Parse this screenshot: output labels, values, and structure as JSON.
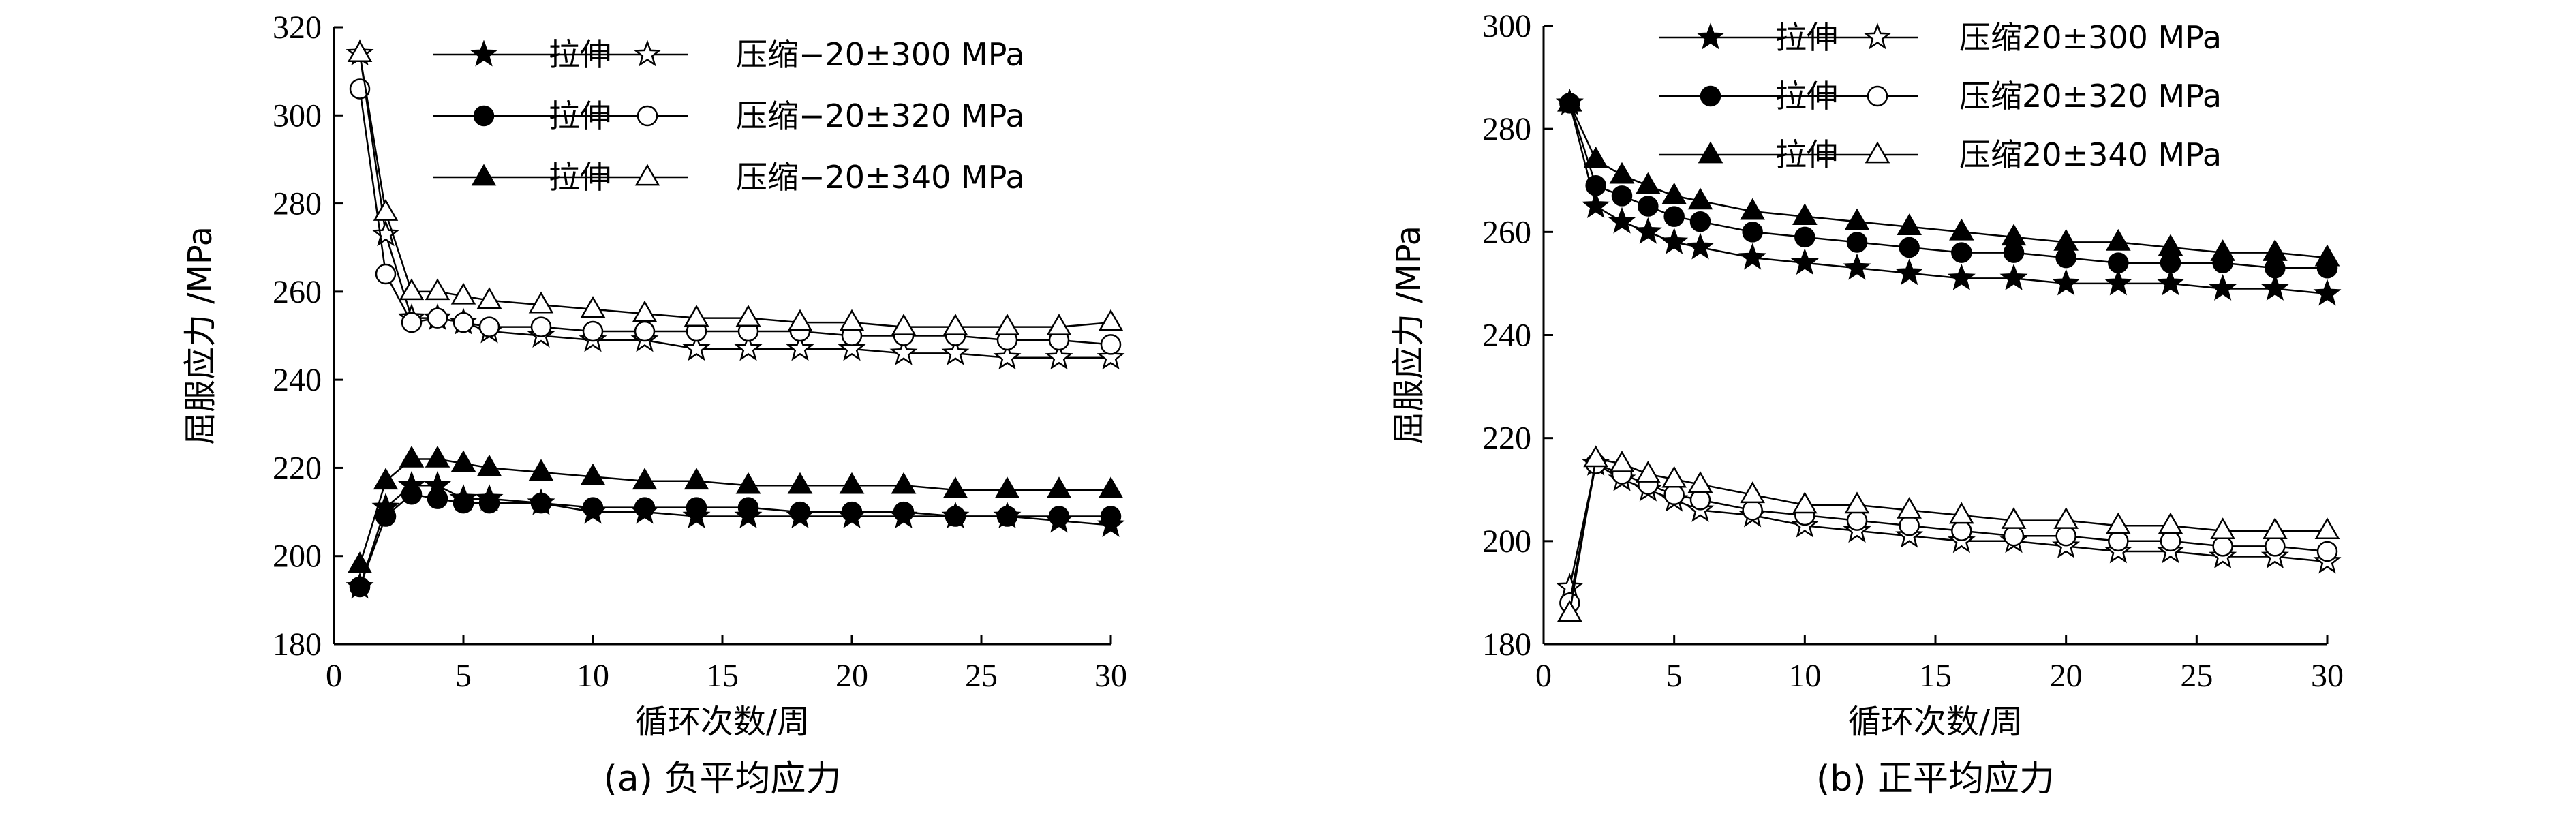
{
  "chart_data": [
    {
      "type": "line",
      "caption": "(a) 负平均应力",
      "xlabel": "循环次数/周",
      "ylabel": "屈服应力 /MPa",
      "xlim": [
        0,
        30
      ],
      "ylim": [
        180,
        320
      ],
      "xticks": [
        0,
        5,
        10,
        15,
        20,
        25,
        30
      ],
      "yticks": [
        180,
        200,
        220,
        240,
        260,
        280,
        300,
        320
      ],
      "legend_location": "top-right",
      "legend_rows": [
        {
          "tension_label": "拉伸",
          "compression_label": "压缩−20±300 MPa",
          "marker": "star"
        },
        {
          "tension_label": "拉伸",
          "compression_label": "压缩−20±320 MPa",
          "marker": "circle"
        },
        {
          "tension_label": "拉伸",
          "compression_label": "压缩−20±340 MPa",
          "marker": "triangle"
        }
      ],
      "x": [
        1,
        2,
        3,
        4,
        5,
        6,
        8,
        10,
        12,
        14,
        16,
        18,
        20,
        22,
        24,
        26,
        28,
        30
      ],
      "series": [
        {
          "name": "拉伸 −20±300 MPa",
          "marker": "star",
          "filled": true,
          "values": [
            193,
            211,
            216,
            216,
            213,
            213,
            212,
            210,
            210,
            209,
            209,
            209,
            209,
            209,
            209,
            209,
            208,
            207
          ]
        },
        {
          "name": "压缩 −20±300 MPa",
          "marker": "star",
          "filled": false,
          "values": [
            314,
            273,
            254,
            254,
            253,
            251,
            250,
            249,
            249,
            247,
            247,
            247,
            247,
            246,
            246,
            245,
            245,
            245
          ]
        },
        {
          "name": "拉伸 −20±320 MPa",
          "marker": "circle",
          "filled": true,
          "values": [
            193,
            209,
            214,
            213,
            212,
            212,
            212,
            211,
            211,
            211,
            211,
            210,
            210,
            210,
            209,
            209,
            209,
            209
          ]
        },
        {
          "name": "压缩 −20±320 MPa",
          "marker": "circle",
          "filled": false,
          "values": [
            306,
            264,
            253,
            254,
            253,
            252,
            252,
            251,
            251,
            251,
            251,
            251,
            250,
            250,
            250,
            249,
            249,
            248
          ]
        },
        {
          "name": "拉伸 −20±340 MPa",
          "marker": "triangle",
          "filled": true,
          "values": [
            198,
            217,
            222,
            222,
            221,
            220,
            219,
            218,
            217,
            217,
            216,
            216,
            216,
            216,
            215,
            215,
            215,
            215
          ]
        },
        {
          "name": "压缩 −20±340 MPa",
          "marker": "triangle",
          "filled": false,
          "values": [
            314,
            278,
            260,
            260,
            259,
            258,
            257,
            256,
            255,
            254,
            254,
            253,
            253,
            252,
            252,
            252,
            252,
            253
          ]
        }
      ]
    },
    {
      "type": "line",
      "caption": "(b) 正平均应力",
      "xlabel": "循环次数/周",
      "ylabel": "屈服应力 /MPa",
      "xlim": [
        0,
        30
      ],
      "ylim": [
        180,
        300
      ],
      "xticks": [
        0,
        5,
        10,
        15,
        20,
        25,
        30
      ],
      "yticks": [
        180,
        200,
        220,
        240,
        260,
        280,
        300
      ],
      "legend_location": "top-right",
      "legend_rows": [
        {
          "tension_label": "拉伸",
          "compression_label": "压缩20±300 MPa",
          "marker": "star"
        },
        {
          "tension_label": "拉伸",
          "compression_label": "压缩20±320 MPa",
          "marker": "circle"
        },
        {
          "tension_label": "拉伸",
          "compression_label": "压缩20±340 MPa",
          "marker": "triangle"
        }
      ],
      "x": [
        1,
        2,
        3,
        4,
        5,
        6,
        8,
        10,
        12,
        14,
        16,
        18,
        20,
        22,
        24,
        26,
        28,
        30
      ],
      "series": [
        {
          "name": "拉伸 20±300 MPa",
          "marker": "star",
          "filled": true,
          "values": [
            285,
            265,
            262,
            260,
            258,
            257,
            255,
            254,
            253,
            252,
            251,
            251,
            250,
            250,
            250,
            249,
            249,
            248
          ]
        },
        {
          "name": "压缩 20±300 MPa",
          "marker": "star",
          "filled": false,
          "values": [
            191,
            215,
            212,
            210,
            208,
            206,
            205,
            203,
            202,
            201,
            200,
            200,
            199,
            198,
            198,
            197,
            197,
            196
          ]
        },
        {
          "name": "拉伸 20±320 MPa",
          "marker": "circle",
          "filled": true,
          "values": [
            285,
            269,
            267,
            265,
            263,
            262,
            260,
            259,
            258,
            257,
            256,
            256,
            255,
            254,
            254,
            254,
            253,
            253
          ]
        },
        {
          "name": "压缩 20±320 MPa",
          "marker": "circle",
          "filled": false,
          "values": [
            188,
            215,
            213,
            211,
            209,
            208,
            206,
            205,
            204,
            203,
            202,
            201,
            201,
            200,
            200,
            199,
            199,
            198
          ]
        },
        {
          "name": "拉伸 20±340 MPa",
          "marker": "triangle",
          "filled": true,
          "values": [
            285,
            274,
            271,
            269,
            267,
            266,
            264,
            263,
            262,
            261,
            260,
            259,
            258,
            258,
            257,
            256,
            256,
            255
          ]
        },
        {
          "name": "压缩 20±340 MPa",
          "marker": "triangle",
          "filled": false,
          "values": [
            186,
            216,
            215,
            213,
            212,
            211,
            209,
            207,
            207,
            206,
            205,
            204,
            204,
            203,
            203,
            202,
            202,
            202
          ]
        }
      ]
    }
  ]
}
